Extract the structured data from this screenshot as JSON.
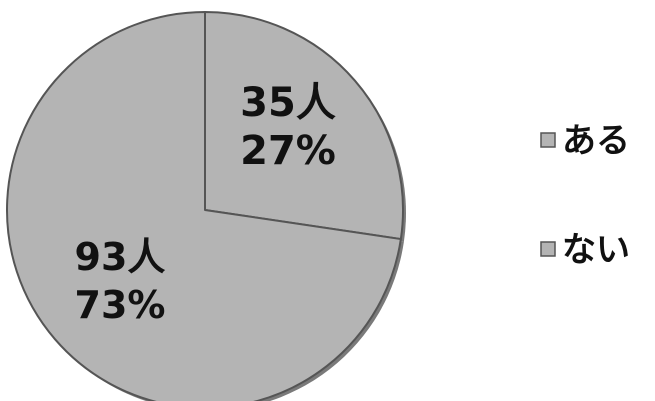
{
  "chart_data": {
    "type": "pie",
    "title": "",
    "slices": [
      {
        "label": "ある",
        "count_label": "35人",
        "percent_label": "27%",
        "value": 35,
        "percent": 27
      },
      {
        "label": "ない",
        "count_label": "93人",
        "percent_label": "73%",
        "value": 93,
        "percent": 73
      }
    ],
    "legend": {
      "placement": "right",
      "entries": [
        "ある",
        "ない"
      ]
    },
    "colors": {
      "slice_fill": "#b4b4b4",
      "slice_stroke": "#555555",
      "slice_shadow": "#7a7a7a",
      "text": "#111111"
    }
  }
}
